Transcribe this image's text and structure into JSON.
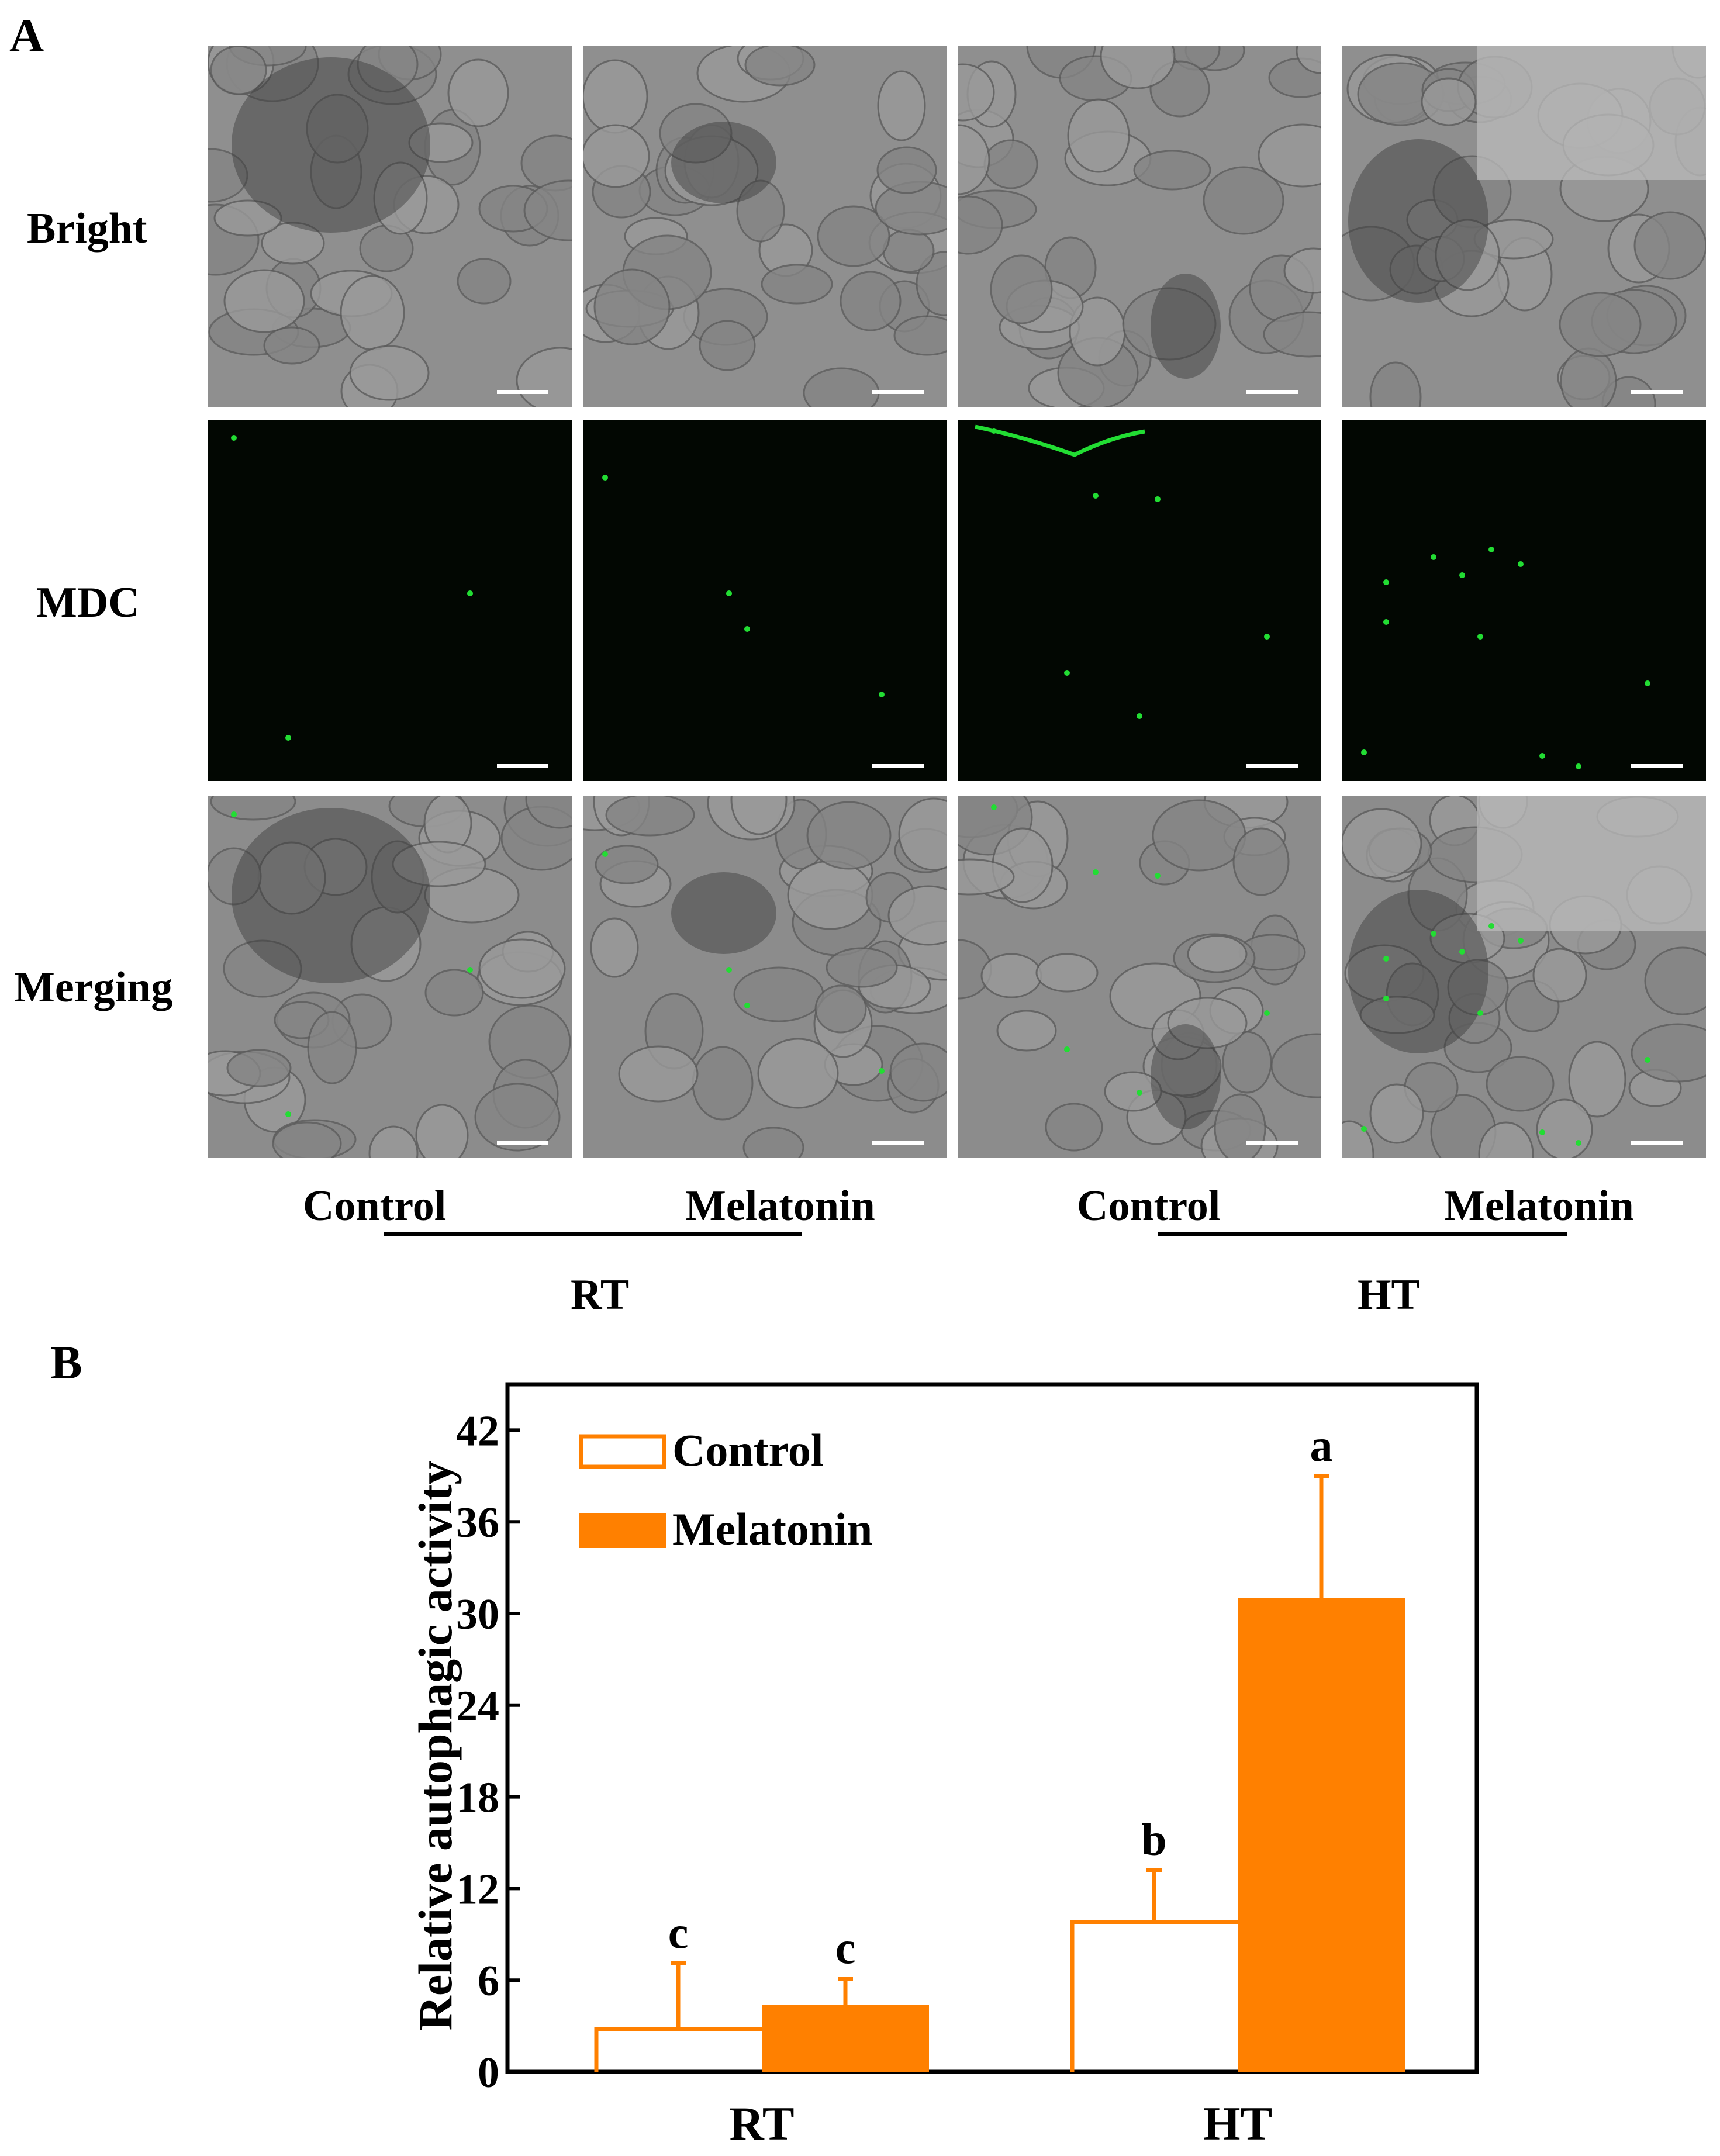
{
  "figure": {
    "panel_a_letter": "A",
    "panel_b_letter": "B",
    "row_labels": [
      "Bright",
      "MDC",
      "Merging"
    ],
    "column_labels": [
      "Control",
      "Melatonin",
      "Control",
      "Melatonin"
    ],
    "group_labels": [
      "RT",
      "HT"
    ]
  },
  "colors": {
    "control_outline": "#ff8000",
    "melatonin_fill": "#ff8000",
    "fluorescence": "#22dd33"
  },
  "chart_data": {
    "type": "bar",
    "title": "",
    "xlabel": "",
    "ylabel": "Relative autophagic activity",
    "categories": [
      "RT",
      "HT"
    ],
    "ylim": [
      0,
      45
    ],
    "yticks": [
      0,
      6,
      12,
      18,
      24,
      30,
      36,
      42
    ],
    "series": [
      {
        "name": "Control",
        "style": "outline",
        "values": [
          2.8,
          9.8
        ],
        "errors": [
          4.3,
          3.4
        ],
        "letters": [
          "c",
          "b"
        ]
      },
      {
        "name": "Melatonin",
        "style": "filled",
        "values": [
          4.4,
          31.0
        ],
        "errors": [
          1.7,
          8.0
        ],
        "letters": [
          "c",
          "a"
        ]
      }
    ],
    "legend_position": "top-left",
    "grid": false
  }
}
